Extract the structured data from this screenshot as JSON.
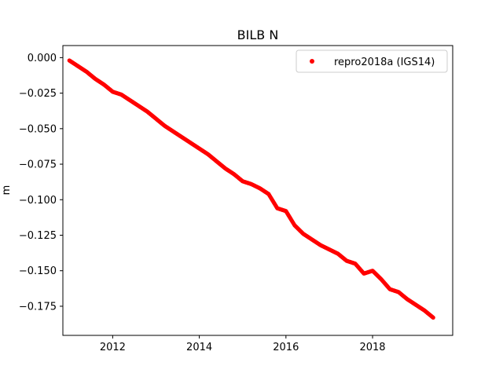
{
  "chart_data": {
    "type": "scatter",
    "title": "BILB N",
    "xlabel": "",
    "ylabel": "m",
    "xlim": [
      2010.85,
      2019.85
    ],
    "ylim": [
      -0.1955,
      0.0085
    ],
    "xticks": [
      2012,
      2014,
      2016,
      2018
    ],
    "xtick_labels": [
      "2012",
      "2014",
      "2016",
      "2018"
    ],
    "yticks": [
      0.0,
      -0.025,
      -0.05,
      -0.075,
      -0.1,
      -0.125,
      -0.15,
      -0.175
    ],
    "ytick_labels": [
      "0.000",
      "−0.025",
      "−0.050",
      "−0.075",
      "−0.100",
      "−0.125",
      "−0.150",
      "−0.175"
    ],
    "grid": false,
    "legend_position": "upper right",
    "series": [
      {
        "name": "repro2018a (IGS14)",
        "color": "#ff0000",
        "marker": "circle",
        "x": [
          2011.0,
          2011.2,
          2011.4,
          2011.6,
          2011.8,
          2012.0,
          2012.2,
          2012.4,
          2012.6,
          2012.8,
          2013.0,
          2013.2,
          2013.4,
          2013.6,
          2013.8,
          2014.0,
          2014.2,
          2014.4,
          2014.6,
          2014.8,
          2015.0,
          2015.2,
          2015.4,
          2015.6,
          2015.8,
          2016.0,
          2016.2,
          2016.4,
          2016.6,
          2016.8,
          2017.0,
          2017.2,
          2017.4,
          2017.6,
          2017.8,
          2018.0,
          2018.2,
          2018.4,
          2018.6,
          2018.8,
          2019.0,
          2019.2,
          2019.4
        ],
        "y": [
          -0.002,
          -0.006,
          -0.01,
          -0.015,
          -0.019,
          -0.024,
          -0.026,
          -0.03,
          -0.034,
          -0.038,
          -0.043,
          -0.048,
          -0.052,
          -0.056,
          -0.06,
          -0.064,
          -0.068,
          -0.073,
          -0.078,
          -0.082,
          -0.087,
          -0.089,
          -0.092,
          -0.096,
          -0.106,
          -0.108,
          -0.118,
          -0.124,
          -0.128,
          -0.132,
          -0.135,
          -0.138,
          -0.143,
          -0.145,
          -0.152,
          -0.15,
          -0.156,
          -0.163,
          -0.165,
          -0.17,
          -0.174,
          -0.178,
          -0.183
        ]
      }
    ]
  }
}
